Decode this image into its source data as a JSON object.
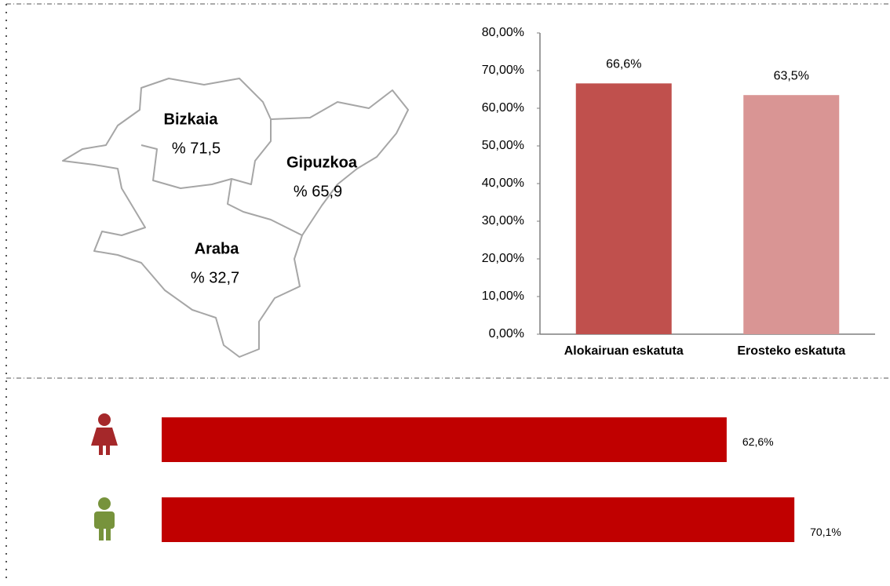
{
  "map": {
    "regions": [
      {
        "name": "Bizkaia",
        "label": "% 71,5"
      },
      {
        "name": "Gipuzkoa",
        "label": "% 65,9"
      },
      {
        "name": "Araba",
        "label": "% 32,7"
      }
    ]
  },
  "chart_data": [
    {
      "type": "bar",
      "categories": [
        "Alokairuan eskatuta",
        "Erosteko eskatuta"
      ],
      "values": [
        66.6,
        63.5
      ],
      "value_labels": [
        "66,6%",
        "63,5%"
      ],
      "colors": [
        "#c0504d",
        "#d99594"
      ],
      "ylim": [
        0,
        80
      ],
      "yticks": [
        {
          "value": 0,
          "label": "0,00%"
        },
        {
          "value": 10,
          "label": "10,00%"
        },
        {
          "value": 20,
          "label": "20,00%"
        },
        {
          "value": 30,
          "label": "30,00%"
        },
        {
          "value": 40,
          "label": "40,00%"
        },
        {
          "value": 50,
          "label": "50,00%"
        },
        {
          "value": 60,
          "label": "60,00%"
        },
        {
          "value": 70,
          "label": "70,00%"
        },
        {
          "value": 80,
          "label": "80,00%"
        }
      ]
    },
    {
      "type": "hbar",
      "categories": [
        null,
        null
      ],
      "values": [
        62.6,
        70.1
      ],
      "value_labels": [
        "62,6%",
        "70,1%"
      ],
      "color": "#c00000"
    }
  ]
}
